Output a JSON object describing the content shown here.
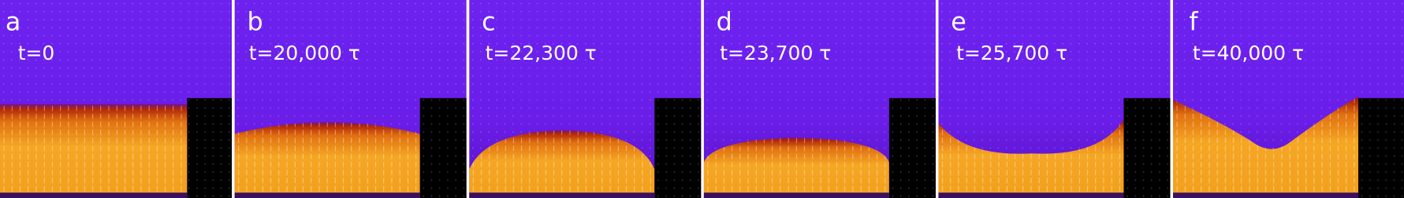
{
  "panels": [
    {
      "label": "a",
      "time": "t=0"
    },
    {
      "label": "b",
      "time": "t=20,000 τ"
    },
    {
      "label": "c",
      "time": "t=22,300 τ"
    },
    {
      "label": "d",
      "time": "t=23,700 τ"
    },
    {
      "label": "e",
      "time": "t=25,700 τ"
    },
    {
      "label": "f",
      "time": "t=40,000 τ"
    }
  ]
}
